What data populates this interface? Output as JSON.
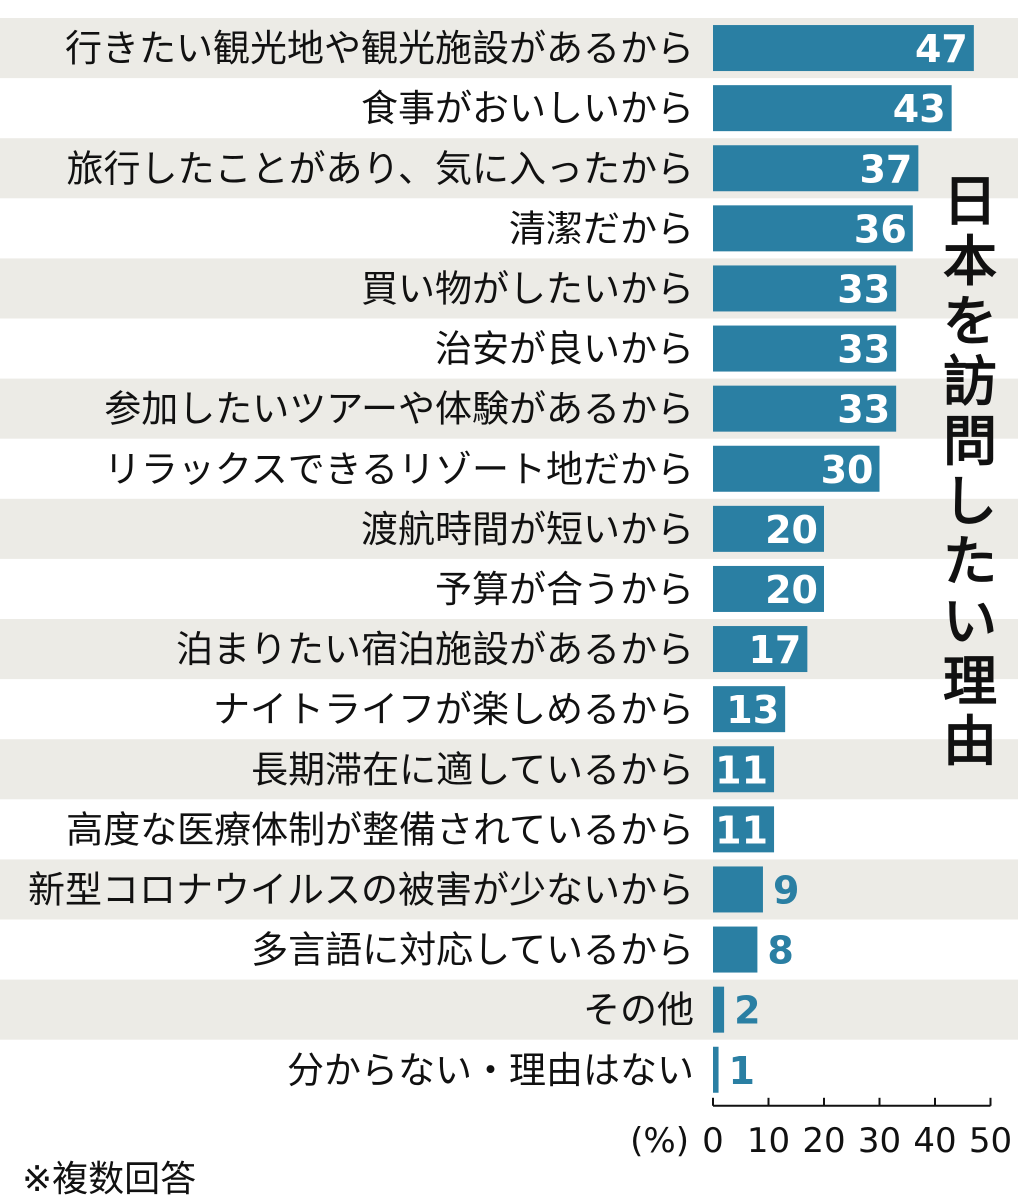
{
  "chart_data": {
    "type": "bar",
    "orientation": "horizontal",
    "title": "日本を訪問したい理由",
    "categories": [
      "行きたい観光地や観光施設があるから",
      "食事がおいしいから",
      "旅行したことがあり、気に入ったから",
      "清潔だから",
      "買い物がしたいから",
      "治安が良いから",
      "参加したいツアーや体験があるから",
      "リラックスできるリゾート地だから",
      "渡航時間が短いから",
      "予算が合うから",
      "泊まりたい宿泊施設があるから",
      "ナイトライフが楽しめるから",
      "長期滞在に適しているから",
      "高度な医療体制が整備されているから",
      "新型コロナウイルスの被害が少ないから",
      "多言語に対応しているから",
      "その他",
      "分からない・理由はない"
    ],
    "values": [
      47,
      43,
      37,
      36,
      33,
      33,
      33,
      30,
      20,
      20,
      17,
      13,
      11,
      11,
      9,
      8,
      2,
      1
    ],
    "xlim": [
      0,
      50
    ],
    "ticks": [
      0,
      10,
      20,
      30,
      40,
      50
    ],
    "unit": "(%)",
    "bar_color": "#2a7fa3",
    "stripe_color": "#ecebe6",
    "value_color_outside": "#2a7fa3",
    "note": "※複数回答"
  }
}
